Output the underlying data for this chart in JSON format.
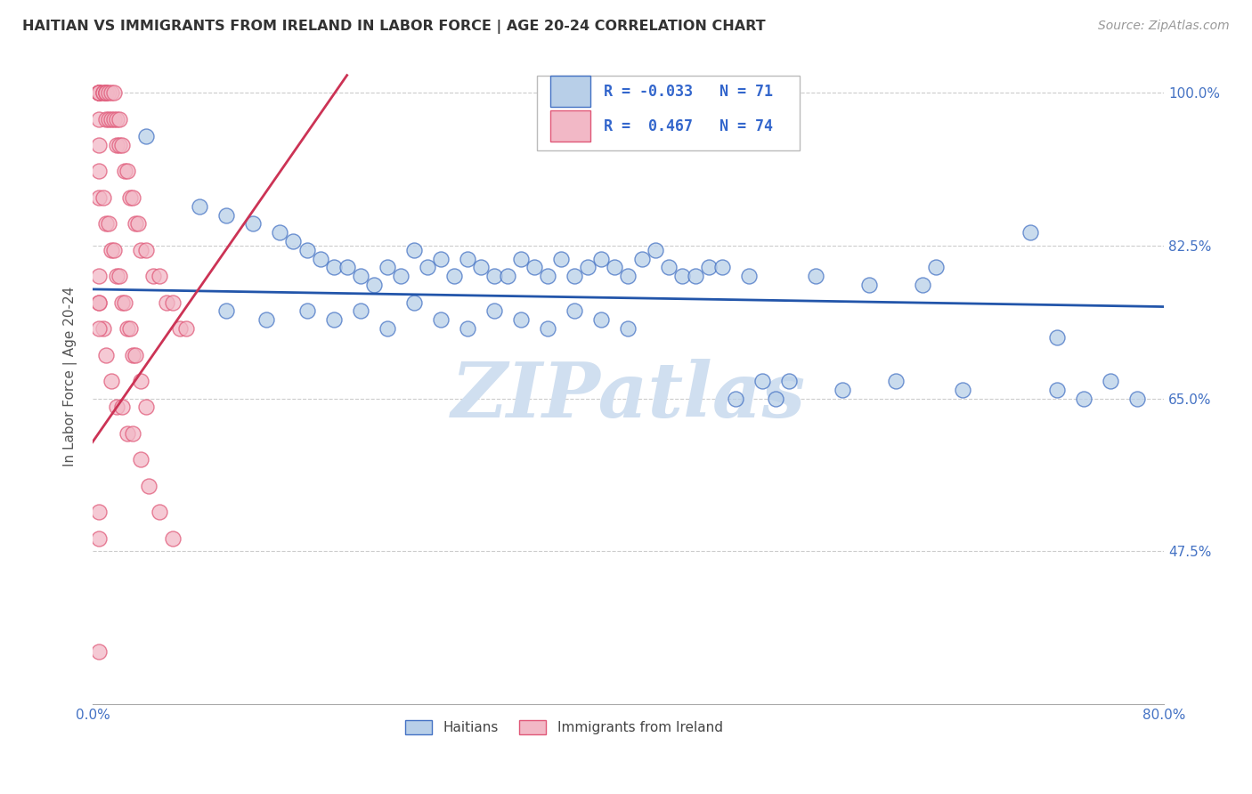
{
  "title": "HAITIAN VS IMMIGRANTS FROM IRELAND IN LABOR FORCE | AGE 20-24 CORRELATION CHART",
  "source": "Source: ZipAtlas.com",
  "ylabel": "In Labor Force | Age 20-24",
  "xlim": [
    0.0,
    0.8
  ],
  "ylim": [
    0.3,
    1.05
  ],
  "xtick_positions": [
    0.0,
    0.1,
    0.2,
    0.3,
    0.4,
    0.5,
    0.6,
    0.7,
    0.8
  ],
  "xticklabels": [
    "0.0%",
    "",
    "",
    "",
    "",
    "",
    "",
    "",
    "80.0%"
  ],
  "ytick_positions": [
    0.475,
    0.65,
    0.825,
    1.0
  ],
  "yticklabels": [
    "47.5%",
    "65.0%",
    "82.5%",
    "100.0%"
  ],
  "legend_R_blue": "-0.033",
  "legend_N_blue": "71",
  "legend_R_pink": "0.467",
  "legend_N_pink": "74",
  "blue_color": "#b8cfe8",
  "blue_edge_color": "#4472c4",
  "pink_color": "#f2b8c6",
  "pink_edge_color": "#e05878",
  "blue_line_color": "#2255aa",
  "pink_line_color": "#cc3355",
  "watermark_color": "#d0dff0",
  "blue_scatter_x": [
    0.04,
    0.08,
    0.1,
    0.12,
    0.14,
    0.15,
    0.16,
    0.17,
    0.18,
    0.19,
    0.2,
    0.21,
    0.22,
    0.23,
    0.24,
    0.25,
    0.26,
    0.27,
    0.28,
    0.29,
    0.3,
    0.31,
    0.32,
    0.33,
    0.34,
    0.35,
    0.36,
    0.37,
    0.38,
    0.39,
    0.4,
    0.41,
    0.42,
    0.43,
    0.44,
    0.45,
    0.46,
    0.47,
    0.48,
    0.49,
    0.5,
    0.51,
    0.52,
    0.54,
    0.56,
    0.58,
    0.6,
    0.62,
    0.63,
    0.65,
    0.7,
    0.72,
    0.74,
    0.76,
    0.78,
    0.1,
    0.13,
    0.16,
    0.18,
    0.2,
    0.22,
    0.24,
    0.26,
    0.28,
    0.3,
    0.32,
    0.34,
    0.36,
    0.38,
    0.4,
    0.72
  ],
  "blue_scatter_y": [
    0.95,
    0.87,
    0.86,
    0.85,
    0.84,
    0.83,
    0.82,
    0.81,
    0.8,
    0.8,
    0.79,
    0.78,
    0.8,
    0.79,
    0.82,
    0.8,
    0.81,
    0.79,
    0.81,
    0.8,
    0.79,
    0.79,
    0.81,
    0.8,
    0.79,
    0.81,
    0.79,
    0.8,
    0.81,
    0.8,
    0.79,
    0.81,
    0.82,
    0.8,
    0.79,
    0.79,
    0.8,
    0.8,
    0.65,
    0.79,
    0.67,
    0.65,
    0.67,
    0.79,
    0.66,
    0.78,
    0.67,
    0.78,
    0.8,
    0.66,
    0.84,
    0.66,
    0.65,
    0.67,
    0.65,
    0.75,
    0.74,
    0.75,
    0.74,
    0.75,
    0.73,
    0.76,
    0.74,
    0.73,
    0.75,
    0.74,
    0.73,
    0.75,
    0.74,
    0.73,
    0.72
  ],
  "pink_scatter_x": [
    0.005,
    0.005,
    0.005,
    0.005,
    0.005,
    0.005,
    0.005,
    0.008,
    0.008,
    0.01,
    0.01,
    0.01,
    0.01,
    0.012,
    0.012,
    0.014,
    0.014,
    0.016,
    0.016,
    0.018,
    0.018,
    0.02,
    0.02,
    0.022,
    0.024,
    0.026,
    0.028,
    0.03,
    0.032,
    0.034,
    0.036,
    0.04,
    0.045,
    0.05,
    0.055,
    0.06,
    0.065,
    0.07,
    0.005,
    0.005,
    0.005,
    0.008,
    0.01,
    0.012,
    0.014,
    0.016,
    0.018,
    0.02,
    0.022,
    0.024,
    0.026,
    0.028,
    0.03,
    0.032,
    0.036,
    0.04,
    0.005,
    0.008,
    0.01,
    0.014,
    0.018,
    0.022,
    0.026,
    0.03,
    0.036,
    0.042,
    0.05,
    0.06,
    0.005,
    0.005,
    0.005,
    0.005,
    0.005,
    0.005
  ],
  "pink_scatter_y": [
    1.0,
    1.0,
    1.0,
    1.0,
    1.0,
    1.0,
    0.97,
    1.0,
    1.0,
    1.0,
    1.0,
    1.0,
    0.97,
    1.0,
    0.97,
    1.0,
    0.97,
    1.0,
    0.97,
    0.97,
    0.94,
    0.97,
    0.94,
    0.94,
    0.91,
    0.91,
    0.88,
    0.88,
    0.85,
    0.85,
    0.82,
    0.82,
    0.79,
    0.79,
    0.76,
    0.76,
    0.73,
    0.73,
    0.94,
    0.91,
    0.88,
    0.88,
    0.85,
    0.85,
    0.82,
    0.82,
    0.79,
    0.79,
    0.76,
    0.76,
    0.73,
    0.73,
    0.7,
    0.7,
    0.67,
    0.64,
    0.76,
    0.73,
    0.7,
    0.67,
    0.64,
    0.64,
    0.61,
    0.61,
    0.58,
    0.55,
    0.52,
    0.49,
    0.79,
    0.76,
    0.73,
    0.52,
    0.49,
    0.36
  ],
  "blue_trend_x": [
    0.0,
    0.8
  ],
  "blue_trend_y": [
    0.775,
    0.755
  ],
  "pink_trend_x0": 0.0,
  "pink_trend_y0": 0.6,
  "pink_trend_x1": 0.19,
  "pink_trend_y1": 1.02
}
